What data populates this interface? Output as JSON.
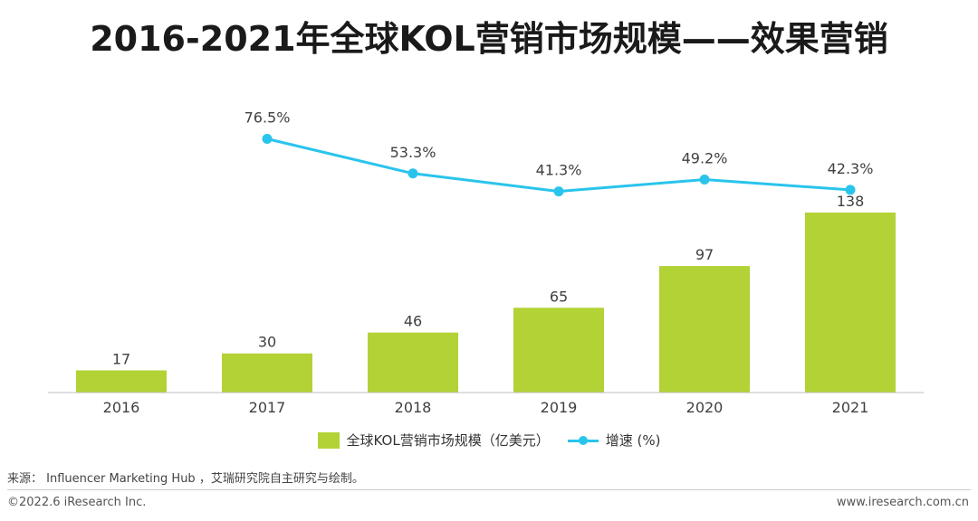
{
  "title": "2016-2021年全球KOL营销市场规模——效果营销",
  "colors": {
    "bar": "#b2d235",
    "line": "#29c4ec",
    "axis": "#bfbfbf",
    "label": "#404040"
  },
  "chart_data": {
    "type": "bar+line",
    "categories": [
      "2016",
      "2017",
      "2018",
      "2019",
      "2020",
      "2021"
    ],
    "series": [
      {
        "name": "全球KOL营销市场规模（亿美元）",
        "type": "bar",
        "values": [
          17,
          30,
          46,
          65,
          97,
          138
        ],
        "labels": [
          "17",
          "30",
          "46",
          "65",
          "97",
          "138"
        ]
      },
      {
        "name": "增速 (%)",
        "type": "line",
        "values": [
          null,
          76.5,
          53.3,
          41.3,
          49.2,
          42.3
        ],
        "labels": [
          "",
          "76.5%",
          "53.3%",
          "41.3%",
          "49.2%",
          "42.3%"
        ]
      }
    ],
    "legend_position": "bottom-center"
  },
  "legend": {
    "bar_label": "全球KOL营销市场规模（亿美元）",
    "line_label": "增速 (%)"
  },
  "footer": {
    "source": "来源：  Influencer Marketing Hub ，艾瑞研究院自主研究与绘制。",
    "copyright": "©2022.6 iResearch Inc.",
    "website": "www.iresearch.com.cn"
  }
}
